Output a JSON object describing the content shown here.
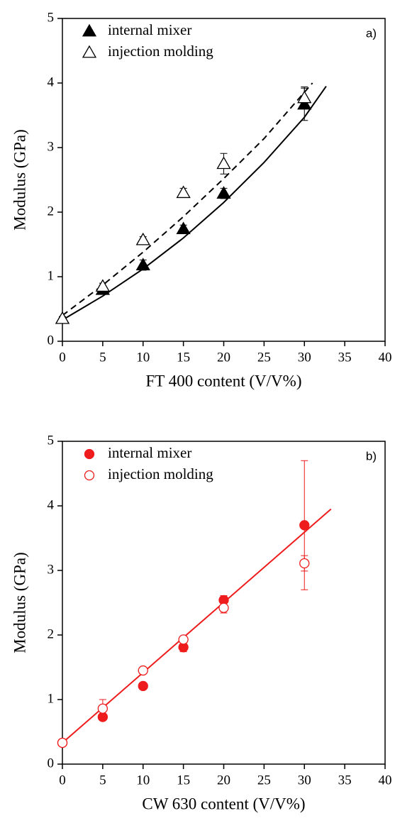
{
  "chart_data": [
    {
      "type": "scatter",
      "panel_label": "a)",
      "x_label": "FT 400 content (V/V%)",
      "y_label": "Modulus (GPa)",
      "xlim": [
        0,
        40
      ],
      "xticks": [
        0,
        5,
        10,
        15,
        20,
        25,
        30,
        35,
        40
      ],
      "ylim": [
        0,
        5
      ],
      "yticks": [
        0,
        1,
        2,
        3,
        4,
        5
      ],
      "x": [
        0,
        5,
        10,
        15,
        20,
        30
      ],
      "series": [
        {
          "name": "internal mixer",
          "color": "#000000",
          "marker": "triangle",
          "filled": true,
          "values": [
            0.35,
            0.8,
            1.18,
            1.74,
            2.29,
            3.67
          ],
          "errors": [
            0.03,
            0.05,
            0.08,
            0.06,
            0.08,
            0.25
          ]
        },
        {
          "name": "injection molding",
          "color": "#000000",
          "marker": "triangle",
          "filled": false,
          "values": [
            0.35,
            0.85,
            1.57,
            2.3,
            2.75,
            3.77
          ],
          "errors": [
            0.03,
            0.05,
            0.05,
            0.07,
            0.16,
            0.17
          ]
        }
      ],
      "fits": [
        {
          "style": "solid",
          "x": [
            0,
            5,
            10,
            15,
            20,
            25,
            30,
            32.7
          ],
          "y": [
            0.33,
            0.7,
            1.12,
            1.6,
            2.15,
            2.77,
            3.47,
            3.95
          ]
        },
        {
          "style": "dashed",
          "x": [
            0,
            5,
            10,
            15,
            20,
            25,
            31
          ],
          "y": [
            0.4,
            0.87,
            1.38,
            1.93,
            2.52,
            3.14,
            4.0
          ]
        }
      ]
    },
    {
      "type": "scatter",
      "panel_label": "b)",
      "x_label": "CW 630 content (V/V%)",
      "y_label": "Modulus (GPa)",
      "xlim": [
        0,
        40
      ],
      "xticks": [
        0,
        5,
        10,
        15,
        20,
        25,
        30,
        35,
        40
      ],
      "ylim": [
        0,
        5
      ],
      "yticks": [
        0,
        1,
        2,
        3,
        4,
        5
      ],
      "x": [
        0,
        5,
        10,
        15,
        20,
        30
      ],
      "series": [
        {
          "name": "internal mixer",
          "color": "#ee1c1c",
          "marker": "circle",
          "filled": true,
          "values": [
            0.33,
            0.73,
            1.21,
            1.81,
            2.54,
            3.7
          ],
          "errors": [
            0.02,
            0.03,
            0.03,
            0.07,
            0.07,
            1.0
          ]
        },
        {
          "name": "injection molding",
          "color": "#ee1c1c",
          "marker": "circle",
          "filled": false,
          "values": [
            0.33,
            0.86,
            1.45,
            1.93,
            2.42,
            3.11
          ],
          "errors": [
            0.02,
            0.14,
            0.03,
            0.04,
            0.08,
            0.12
          ]
        }
      ],
      "fits": [
        {
          "style": "solid",
          "x": [
            0,
            33.3
          ],
          "y": [
            0.33,
            3.95
          ]
        }
      ]
    }
  ]
}
